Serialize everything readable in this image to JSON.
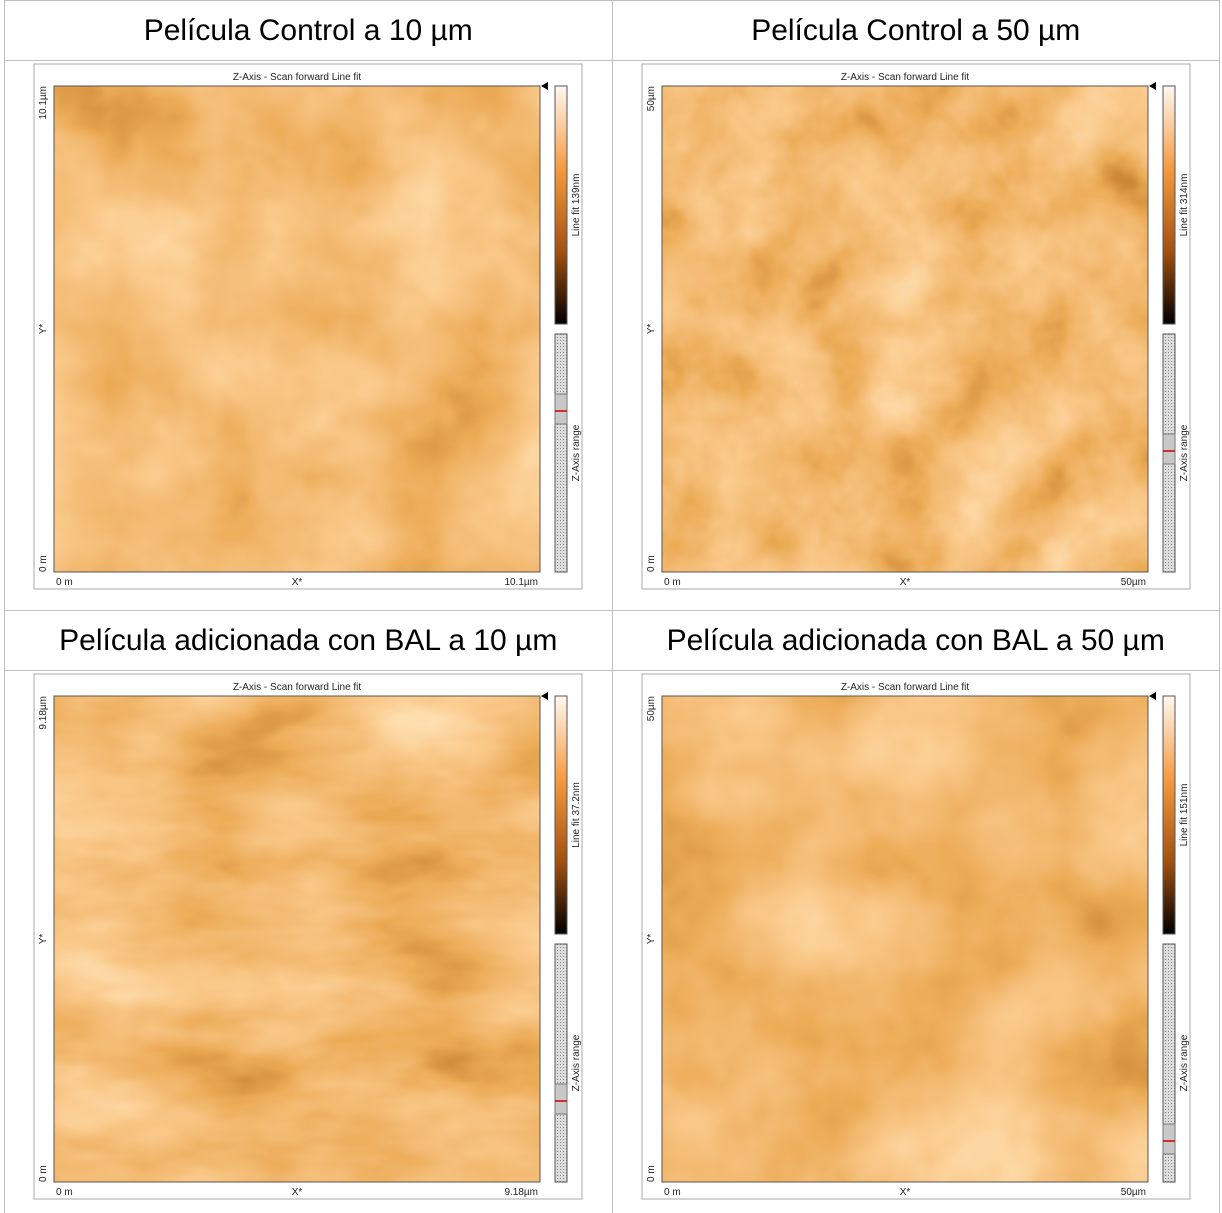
{
  "panels": [
    {
      "title": "Película Control a 10 µm",
      "image_title": "Z-Axis - Scan forward   Line fit",
      "y_top": "10.1µm",
      "y_mid": "Y*",
      "y_bottom": "0 m",
      "x_left": "0 m",
      "x_mid": "X*",
      "x_right": "10.1µm",
      "colorbar_label": "Line fit 139nm",
      "range_label": "Z-Axis range"
    },
    {
      "title": "Película Control a 50 µm",
      "image_title": "Z-Axis - Scan forward   Line fit",
      "y_top": "50µm",
      "y_mid": "Y*",
      "y_bottom": "0 m",
      "x_left": "0 m",
      "x_mid": "X*",
      "x_right": "50µm",
      "colorbar_label": "Line fit 314nm",
      "range_label": "Z-Axis range"
    },
    {
      "title": "Película adicionada con BAL a 10 µm",
      "image_title": "Z-Axis - Scan forward   Line fit",
      "y_top": "9.18µm",
      "y_mid": "Y*",
      "y_bottom": "0 m",
      "x_left": "0 m",
      "x_mid": "X*",
      "x_right": "9.18µm",
      "colorbar_label": "Line fit 37.2nm",
      "range_label": "Z-Axis range"
    },
    {
      "title": "Película adicionada con BAL a 50 µm",
      "image_title": "Z-Axis - Scan forward   Line fit",
      "y_top": "50µm",
      "y_mid": "Y*",
      "y_bottom": "0 m",
      "x_left": "0 m",
      "x_mid": "X*",
      "x_right": "50µm",
      "colorbar_label": "Line fit 151nm",
      "range_label": "Z-Axis range"
    }
  ]
}
